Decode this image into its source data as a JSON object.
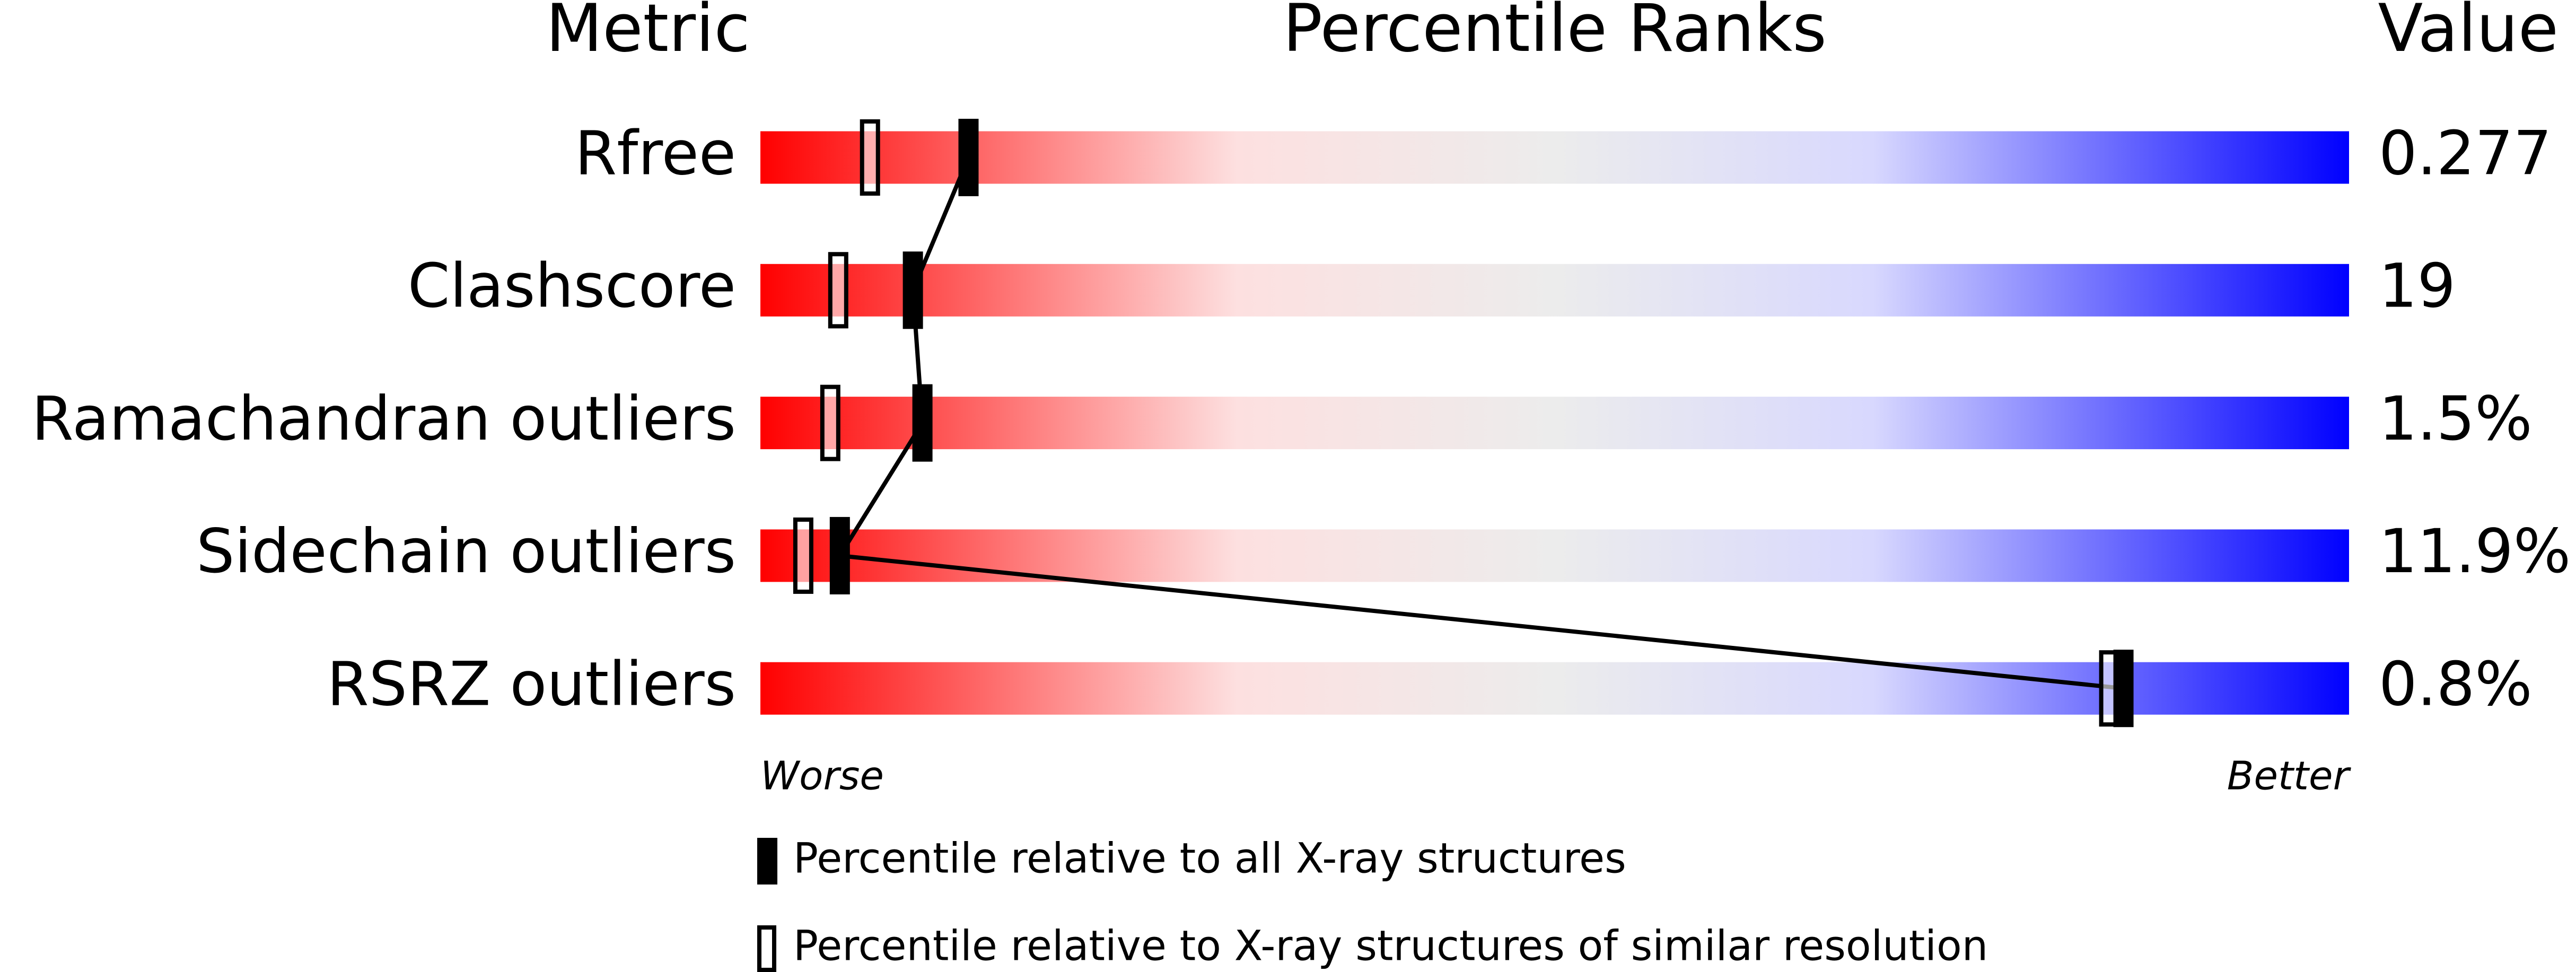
{
  "chart_data": {
    "type": "percentile-slider",
    "headers": {
      "metric": "Metric",
      "ranks": "Percentile Ranks",
      "value": "Value"
    },
    "categories": [
      "Rfree",
      "Clashscore",
      "Ramachandran outliers",
      "Sidechain outliers",
      "RSRZ outliers"
    ],
    "metric_values": [
      "0.277",
      "19",
      "1.5%",
      "11.9%",
      "0.8%"
    ],
    "series": [
      {
        "name": "Percentile relative to all X-ray structures",
        "color": "#000000",
        "marker": "filled",
        "values": [
          13.1,
          9.6,
          10.2,
          5.0,
          85.8
        ]
      },
      {
        "name": "Percentile relative to X-ray structures of similar resolution",
        "color": "#000000",
        "marker": "outline",
        "values": [
          6.9,
          4.9,
          4.4,
          2.7,
          84.9
        ]
      }
    ],
    "xlim": [
      0,
      100
    ],
    "axis_ends": {
      "low": "Worse",
      "high": "Better"
    }
  }
}
